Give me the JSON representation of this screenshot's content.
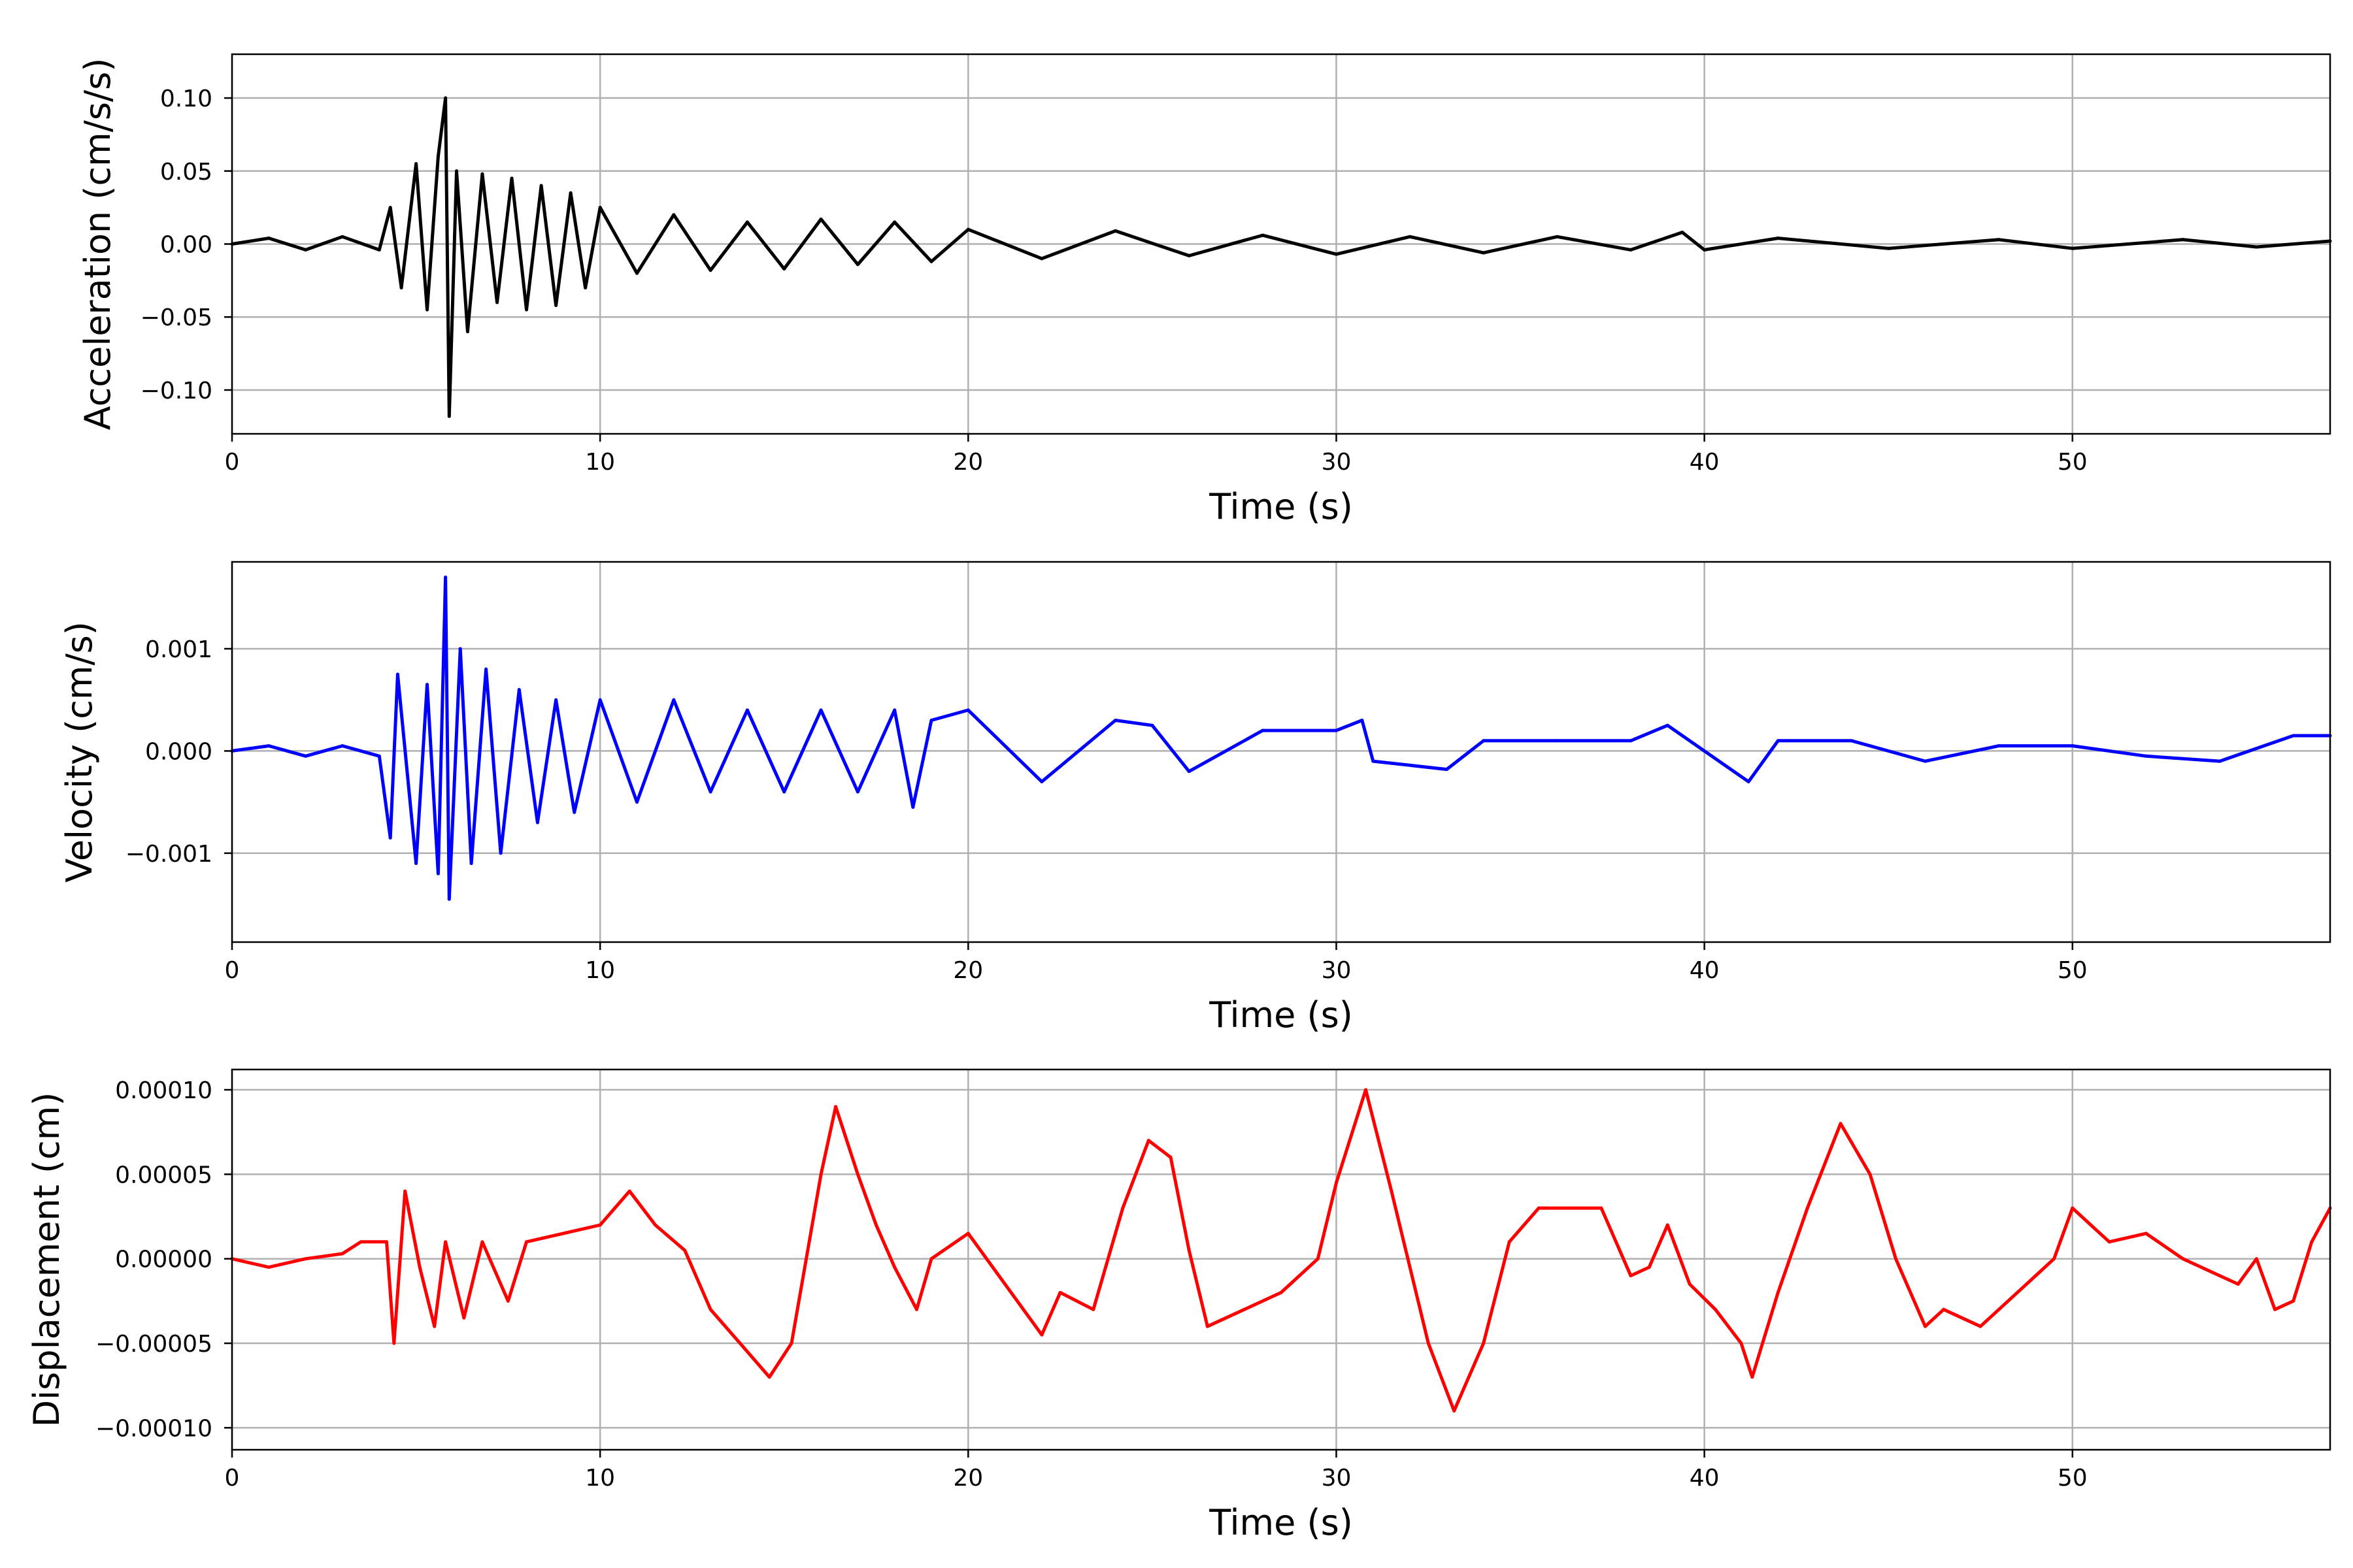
{
  "chart_data": [
    {
      "type": "line",
      "xlabel": "Time (s)",
      "ylabel": "Acceleration (cm/s/s)",
      "xlim": [
        0,
        57
      ],
      "ylim": [
        -0.13,
        0.13
      ],
      "xticks": [
        0,
        10,
        20,
        30,
        40,
        50
      ],
      "xtick_labels": [
        "0",
        "10",
        "20",
        "30",
        "40",
        "50"
      ],
      "yticks": [
        0.1,
        0.05,
        0.0,
        -0.05,
        -0.1
      ],
      "ytick_labels": [
        "0.10",
        "0.05",
        "0.00",
        "−0.05",
        "−0.10"
      ],
      "grid": true,
      "color": "#000000",
      "series": [
        {
          "x": [
            0,
            1,
            2,
            3,
            4,
            4.3,
            4.6,
            5.0,
            5.3,
            5.6,
            5.8,
            5.9,
            6.1,
            6.4,
            6.8,
            7.2,
            7.6,
            8.0,
            8.4,
            8.8,
            9.2,
            9.6,
            10,
            11,
            12,
            13,
            14,
            15,
            16,
            17,
            18,
            19,
            20,
            22,
            24,
            26,
            28,
            30,
            32,
            34,
            36,
            38,
            39.4,
            40,
            42,
            45,
            48,
            50,
            53,
            55,
            57
          ],
          "y": [
            0.0,
            0.004,
            -0.004,
            0.005,
            -0.004,
            0.025,
            -0.03,
            0.055,
            -0.045,
            0.06,
            0.1,
            -0.118,
            0.05,
            -0.06,
            0.048,
            -0.04,
            0.045,
            -0.045,
            0.04,
            -0.042,
            0.035,
            -0.03,
            0.025,
            -0.02,
            0.02,
            -0.018,
            0.015,
            -0.017,
            0.017,
            -0.014,
            0.015,
            -0.012,
            0.01,
            -0.01,
            0.009,
            -0.008,
            0.006,
            -0.007,
            0.005,
            -0.006,
            0.005,
            -0.004,
            0.008,
            -0.004,
            0.004,
            -0.003,
            0.003,
            -0.003,
            0.003,
            -0.002,
            0.002
          ]
        }
      ]
    },
    {
      "type": "line",
      "xlabel": "Time (s)",
      "ylabel": "Velocity (cm/s)",
      "xlim": [
        0,
        57
      ],
      "ylim": [
        -0.00187,
        0.00185
      ],
      "xticks": [
        0,
        10,
        20,
        30,
        40,
        50
      ],
      "xtick_labels": [
        "0",
        "10",
        "20",
        "30",
        "40",
        "50"
      ],
      "yticks": [
        0.001,
        0.0,
        -0.001
      ],
      "ytick_labels": [
        "0.001",
        "0.000",
        "−0.001"
      ],
      "grid": true,
      "color": "#0000ff",
      "series": [
        {
          "x": [
            0,
            1,
            2,
            3,
            4,
            4.3,
            4.5,
            5.0,
            5.3,
            5.6,
            5.8,
            5.9,
            6.2,
            6.5,
            6.9,
            7.3,
            7.8,
            8.3,
            8.8,
            9.3,
            10,
            11,
            12,
            13,
            14,
            15,
            16,
            17,
            18,
            18.5,
            19,
            20,
            22,
            24,
            25,
            26,
            28,
            30,
            30.7,
            31,
            33,
            34,
            36,
            38,
            39,
            40,
            41.2,
            42,
            44,
            46,
            48,
            50,
            52,
            54,
            56,
            57
          ],
          "y": [
            0.0,
            5e-05,
            -5e-05,
            5e-05,
            -5e-05,
            -0.00085,
            0.00075,
            -0.0011,
            0.00065,
            -0.0012,
            0.0017,
            -0.00145,
            0.001,
            -0.0011,
            0.0008,
            -0.001,
            0.0006,
            -0.0007,
            0.0005,
            -0.0006,
            0.0005,
            -0.0005,
            0.0005,
            -0.0004,
            0.0004,
            -0.0004,
            0.0004,
            -0.0004,
            0.0004,
            -0.00055,
            0.0003,
            0.0004,
            -0.0003,
            0.0003,
            0.00025,
            -0.0002,
            0.0002,
            0.0002,
            0.0003,
            -0.0001,
            -0.00018,
            0.0001,
            0.0001,
            0.0001,
            0.00025,
            0.0,
            -0.0003,
            0.0001,
            0.0001,
            -0.0001,
            5e-05,
            5e-05,
            -5e-05,
            -0.0001,
            0.00015,
            0.00015
          ]
        }
      ]
    },
    {
      "type": "line",
      "xlabel": "Time (s)",
      "ylabel": "Displacement (cm)",
      "xlim": [
        0,
        57
      ],
      "ylim": [
        -0.000113,
        0.000112
      ],
      "xticks": [
        0,
        10,
        20,
        30,
        40,
        50
      ],
      "xtick_labels": [
        "0",
        "10",
        "20",
        "30",
        "40",
        "50"
      ],
      "yticks": [
        0.0001,
        5e-05,
        0.0,
        -5e-05,
        -0.0001
      ],
      "ytick_labels": [
        "0.00010",
        "0.00005",
        "0.00000",
        "−0.00005",
        "−0.00010"
      ],
      "grid": true,
      "color": "#ff0000",
      "series": [
        {
          "x": [
            0,
            1,
            2,
            3,
            3.5,
            4.2,
            4.4,
            4.7,
            5.1,
            5.5,
            5.8,
            6.3,
            6.8,
            7.5,
            8.0,
            9.0,
            10.0,
            10.8,
            11.5,
            12.3,
            13.0,
            13.8,
            14.6,
            15.2,
            16.0,
            16.4,
            17.0,
            17.5,
            18.0,
            18.6,
            19.0,
            20.0,
            21.0,
            22.0,
            22.5,
            23.4,
            24.2,
            24.9,
            25.5,
            26.0,
            26.5,
            27.5,
            28.5,
            29.5,
            30.0,
            30.8,
            31.5,
            32.5,
            33.2,
            34.0,
            34.7,
            35.5,
            36.5,
            37.2,
            38.0,
            38.5,
            39.0,
            39.6,
            40.3,
            41.0,
            41.3,
            42.0,
            42.8,
            43.7,
            44.5,
            45.2,
            46.0,
            46.5,
            47.5,
            48.0,
            49.0,
            49.5,
            50.0,
            50.5,
            51.0,
            52.0,
            53.0,
            54.0,
            54.5,
            55.0,
            55.5,
            56.0,
            56.5,
            57.0
          ],
          "y": [
            0.0,
            -5e-06,
            0.0,
            3e-06,
            1e-05,
            1e-05,
            -5e-05,
            4e-05,
            -5e-06,
            -4e-05,
            1e-05,
            -3.5e-05,
            1e-05,
            -2.5e-05,
            1e-05,
            1.5e-05,
            2e-05,
            4e-05,
            2e-05,
            5e-06,
            -3e-05,
            -5e-05,
            -7e-05,
            -5e-05,
            5e-05,
            9e-05,
            5e-05,
            2e-05,
            -5e-06,
            -3e-05,
            0.0,
            1.5e-05,
            -1.5e-05,
            -4.5e-05,
            -2e-05,
            -3e-05,
            3e-05,
            7e-05,
            6e-05,
            5e-06,
            -4e-05,
            -3e-05,
            -2e-05,
            0.0,
            4.5e-05,
            0.0001,
            4e-05,
            -5e-05,
            -9e-05,
            -5e-05,
            1e-05,
            3e-05,
            3e-05,
            3e-05,
            -1e-05,
            -5e-06,
            2e-05,
            -1.5e-05,
            -3e-05,
            -5e-05,
            -7e-05,
            -2e-05,
            3e-05,
            8e-05,
            5e-05,
            0.0,
            -4e-05,
            -3e-05,
            -4e-05,
            -3e-05,
            -1e-05,
            0.0,
            3e-05,
            2e-05,
            1e-05,
            1.5e-05,
            0.0,
            -1e-05,
            -1.5e-05,
            0.0,
            -3e-05,
            -2.5e-05,
            1e-05,
            3e-05
          ]
        }
      ]
    }
  ]
}
